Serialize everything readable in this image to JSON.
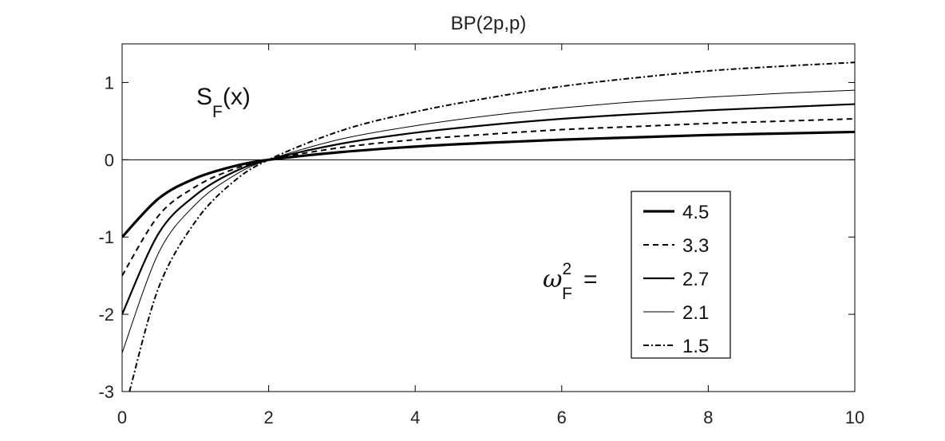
{
  "chart_data": {
    "type": "line",
    "title": "BP(2p,p)",
    "xlabel": "",
    "ylabel": "",
    "xlim": [
      0,
      10
    ],
    "ylim": [
      -3,
      1.5
    ],
    "xticks": [
      0,
      2,
      4,
      6,
      8,
      10
    ],
    "yticks": [
      -3,
      -2,
      -1,
      0,
      1
    ],
    "xtick_labels": [
      "0",
      "2",
      "4",
      "6",
      "8",
      "10"
    ],
    "ytick_labels": [
      "-3",
      "-2",
      "-1",
      "0",
      "1"
    ],
    "grid": false,
    "legend_position": "bottom-right",
    "legend_prefix": {
      "symbol": "ω",
      "sub": "F",
      "sup": "2",
      "suffix": "="
    },
    "annotation": {
      "base": "S",
      "sub": "F",
      "rest": "(x)"
    },
    "series": [
      {
        "name": "4.5",
        "style": "thick-solid",
        "x": [
          0,
          0.5,
          1,
          1.5,
          2,
          3,
          4,
          5,
          6,
          7,
          8,
          9,
          10
        ],
        "y": [
          -1.0,
          -0.5,
          -0.24,
          -0.09,
          0.0,
          0.1,
          0.17,
          0.22,
          0.26,
          0.29,
          0.32,
          0.34,
          0.36
        ]
      },
      {
        "name": "3.3",
        "style": "dashed",
        "x": [
          0,
          0.5,
          1,
          1.5,
          2,
          3,
          4,
          5,
          6,
          7,
          8,
          9,
          10
        ],
        "y": [
          -1.5,
          -0.72,
          -0.35,
          -0.13,
          0.0,
          0.16,
          0.26,
          0.33,
          0.39,
          0.43,
          0.47,
          0.5,
          0.53
        ]
      },
      {
        "name": "2.7",
        "style": "solid",
        "x": [
          0,
          0.5,
          1,
          1.5,
          2,
          3,
          4,
          5,
          6,
          7,
          8,
          9,
          10
        ],
        "y": [
          -2.0,
          -0.95,
          -0.46,
          -0.17,
          0.0,
          0.21,
          0.35,
          0.45,
          0.53,
          0.59,
          0.64,
          0.68,
          0.72
        ]
      },
      {
        "name": "2.1",
        "style": "thin-solid",
        "x": [
          0,
          0.5,
          1,
          1.5,
          2,
          3,
          4,
          5,
          6,
          7,
          8,
          9,
          10
        ],
        "y": [
          -2.5,
          -1.2,
          -0.58,
          -0.22,
          0.0,
          0.27,
          0.44,
          0.57,
          0.67,
          0.75,
          0.81,
          0.86,
          0.9
        ]
      },
      {
        "name": "1.5",
        "style": "dash-dot",
        "x": [
          0.1,
          0.5,
          1,
          1.5,
          2,
          3,
          4,
          5,
          6,
          7,
          8,
          9,
          10
        ],
        "y": [
          -3.0,
          -1.65,
          -0.8,
          -0.3,
          0.0,
          0.38,
          0.62,
          0.8,
          0.95,
          1.06,
          1.15,
          1.21,
          1.26
        ]
      }
    ]
  }
}
